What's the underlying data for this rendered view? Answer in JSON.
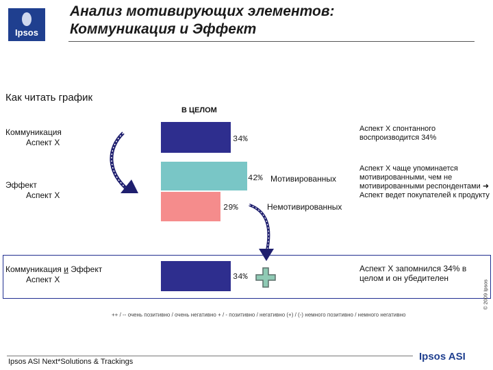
{
  "header": {
    "logo_text": "Ipsos",
    "title_line1": "Анализ мотивирующих элементов:",
    "title_line2": "Коммуникация и Эффект"
  },
  "section_title": "Как читать график",
  "column_header": "В ЦЕЛОМ",
  "rows": {
    "communication": {
      "label": "Коммуникация",
      "sub": "Аспект X",
      "value_text": "34%"
    },
    "effect": {
      "label": "Эффект",
      "sub": "Аспект X",
      "motivated_value_text": "42%",
      "motivated_label": "Мотивированных",
      "unmotivated_value_text": "29%",
      "unmotivated_label": "Немотивированных"
    },
    "combined": {
      "label_before": "Коммуникация ",
      "label_underlined": "и",
      "label_after": " Эффект",
      "sub": "Аспект X",
      "value_text": "34%"
    }
  },
  "notes": {
    "note1": "Аспект X спонтанного воспроизводится 34%",
    "note2_part1": "Аспект X чаще упоминается мотивированными, чем не мотивированными респондентами",
    "note2_arrow": "➜",
    "note2_part2": "Аспект ведет покупателей к продукту",
    "note3": "Аспект X запомнился 34% в целом и он убедителен"
  },
  "legend": "++ / -- очень позитивно / очень негативно + / - позитивно / негативно (+) / (-) немного позитивно / немного негативно",
  "copyright": "© 2009 Ipsos",
  "footer": {
    "left": "Ipsos ASI Next*Solutions & Trackings",
    "right": "Ipsos ASI"
  },
  "chart_data": {
    "type": "bar",
    "categories": [
      "Коммуникация Аспект X",
      "Эффект Аспект X (Мотивированных)",
      "Эффект Аспект X (Немотивированных)",
      "Коммуникация и Эффект Аспект X"
    ],
    "values": [
      34,
      42,
      29,
      34
    ],
    "title": "В ЦЕЛОМ",
    "colors": [
      "#2e2e8e",
      "#79c6c6",
      "#f58c8c",
      "#2e2e8e"
    ]
  }
}
